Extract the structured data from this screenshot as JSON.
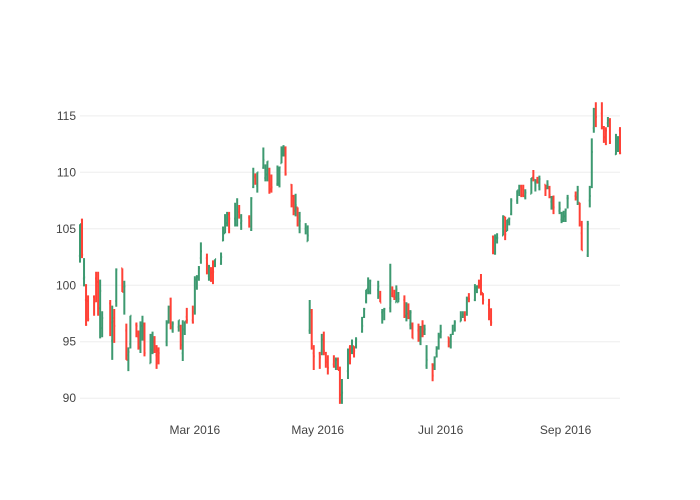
{
  "chart_data": {
    "type": "ohlc",
    "title": "",
    "xlabel": "",
    "ylabel": "",
    "x_range": [
      "2016-01-04",
      "2016-09-28"
    ],
    "ylim": [
      89.4,
      116.4
    ],
    "x_ticks": [
      {
        "date": "2016-03-01",
        "label": "Mar 2016"
      },
      {
        "date": "2016-05-01",
        "label": "May 2016"
      },
      {
        "date": "2016-07-01",
        "label": "Jul 2016"
      },
      {
        "date": "2016-09-01",
        "label": "Sep 2016"
      }
    ],
    "y_ticks": [
      90,
      95,
      100,
      105,
      110,
      115
    ],
    "grid": "horizontal",
    "legend": "none",
    "colors": {
      "increasing": "#3d9970",
      "decreasing": "#ff4136",
      "grid": "#eeeeee",
      "tick_text": "#444444"
    },
    "series": [
      [
        "2016-01-04",
        102.6,
        105.4,
        102.0,
        105.4
      ],
      [
        "2016-01-05",
        105.8,
        105.9,
        102.4,
        102.7
      ],
      [
        "2016-01-06",
        100.6,
        102.4,
        99.9,
        100.7
      ],
      [
        "2016-01-07",
        98.7,
        100.1,
        96.4,
        96.5
      ],
      [
        "2016-01-08",
        98.6,
        99.1,
        96.8,
        97.0
      ],
      [
        "2016-01-11",
        98.97,
        99.1,
        97.3,
        98.5
      ],
      [
        "2016-01-12",
        100.6,
        101.2,
        98.5,
        99.96
      ],
      [
        "2016-01-13",
        100.3,
        101.2,
        97.3,
        97.4
      ],
      [
        "2016-01-14",
        97.96,
        100.5,
        95.3,
        99.5
      ],
      [
        "2016-01-15",
        96.2,
        97.7,
        95.4,
        97.1
      ],
      [
        "2016-01-19",
        98.4,
        98.7,
        95.5,
        96.7
      ],
      [
        "2016-01-20",
        95.1,
        98.2,
        93.4,
        96.8
      ],
      [
        "2016-01-21",
        97.1,
        97.9,
        94.9,
        96.4
      ],
      [
        "2016-01-22",
        98.6,
        101.5,
        98.1,
        101.4
      ],
      [
        "2016-01-25",
        101.5,
        101.5,
        99.4,
        99.4
      ],
      [
        "2016-01-26",
        99.9,
        100.4,
        97.4,
        99.9
      ],
      [
        "2016-01-27",
        96.0,
        96.6,
        93.4,
        93.4
      ],
      [
        "2016-01-28",
        93.8,
        94.5,
        92.4,
        94.1
      ],
      [
        "2016-01-29",
        94.8,
        97.3,
        94.4,
        97.3
      ],
      [
        "2016-02-01",
        96.5,
        96.7,
        95.4,
        96.4
      ],
      [
        "2016-02-02",
        95.4,
        96.0,
        94.3,
        94.5
      ],
      [
        "2016-02-03",
        95.0,
        96.8,
        94.0,
        96.4
      ],
      [
        "2016-02-04",
        95.9,
        97.3,
        95.1,
        96.6
      ],
      [
        "2016-02-05",
        96.5,
        96.7,
        93.7,
        94.0
      ],
      [
        "2016-02-08",
        93.1,
        95.7,
        93.1,
        95.0
      ],
      [
        "2016-02-09",
        94.3,
        95.9,
        93.9,
        94.99
      ],
      [
        "2016-02-10",
        95.0,
        95.5,
        94.0,
        94.3
      ],
      [
        "2016-02-11",
        93.8,
        94.7,
        92.6,
        93.7
      ],
      [
        "2016-02-12",
        94.2,
        94.5,
        93.0,
        93.99
      ],
      [
        "2016-02-16",
        95.0,
        96.9,
        94.6,
        96.6
      ],
      [
        "2016-02-17",
        96.7,
        98.2,
        96.6,
        98.1
      ],
      [
        "2016-02-18",
        98.8,
        98.9,
        96.1,
        96.3
      ],
      [
        "2016-02-19",
        96.0,
        96.8,
        95.8,
        96.6
      ],
      [
        "2016-02-22",
        96.3,
        96.9,
        95.9,
        96.9
      ],
      [
        "2016-02-23",
        96.4,
        96.5,
        94.3,
        94.7
      ],
      [
        "2016-02-24",
        93.98,
        96.9,
        93.3,
        96.1
      ],
      [
        "2016-02-25",
        96.1,
        96.8,
        95.6,
        96.8
      ],
      [
        "2016-02-26",
        97.2,
        98.0,
        96.6,
        96.9
      ],
      [
        "2016-02-29",
        96.9,
        98.2,
        96.6,
        96.7
      ],
      [
        "2016-03-01",
        97.65,
        100.8,
        97.4,
        100.5
      ],
      [
        "2016-03-02",
        100.5,
        100.9,
        99.6,
        100.75
      ],
      [
        "2016-03-03",
        100.6,
        101.7,
        100.4,
        101.5
      ],
      [
        "2016-03-04",
        102.4,
        103.8,
        101.9,
        103.0
      ],
      [
        "2016-03-07",
        102.4,
        102.8,
        100.96,
        101.9
      ],
      [
        "2016-03-08",
        100.8,
        101.8,
        100.4,
        101.6
      ],
      [
        "2016-03-09",
        101.3,
        101.6,
        100.3,
        101.1
      ],
      [
        "2016-03-10",
        101.4,
        102.2,
        100.1,
        101.2
      ],
      [
        "2016-03-11",
        102.2,
        102.3,
        101.6,
        102.3
      ],
      [
        "2016-03-14",
        101.9,
        102.9,
        101.8,
        102.5
      ],
      [
        "2016-03-15",
        103.96,
        105.2,
        103.9,
        104.6
      ],
      [
        "2016-03-16",
        104.6,
        106.3,
        104.6,
        105.97
      ],
      [
        "2016-03-17",
        105.5,
        106.5,
        105.2,
        105.8
      ],
      [
        "2016-03-18",
        106.3,
        106.5,
        104.6,
        105.9
      ],
      [
        "2016-03-21",
        105.9,
        107.3,
        105.2,
        105.9
      ],
      [
        "2016-03-22",
        105.3,
        107.7,
        105.2,
        106.7
      ],
      [
        "2016-03-23",
        106.5,
        107.1,
        105.9,
        106.1
      ],
      [
        "2016-03-24",
        105.5,
        106.3,
        104.9,
        105.7
      ],
      [
        "2016-03-28",
        106.0,
        106.2,
        105.1,
        105.2
      ],
      [
        "2016-03-29",
        104.9,
        107.8,
        104.8,
        107.7
      ],
      [
        "2016-03-30",
        108.7,
        110.4,
        108.6,
        109.6
      ],
      [
        "2016-03-31",
        109.7,
        109.9,
        108.9,
        108.99
      ],
      [
        "2016-04-01",
        108.8,
        110.0,
        108.2,
        109.99
      ],
      [
        "2016-04-04",
        110.4,
        112.2,
        110.3,
        111.1
      ],
      [
        "2016-04-05",
        109.5,
        110.7,
        109.2,
        109.8
      ],
      [
        "2016-04-06",
        110.2,
        110.98,
        109.2,
        110.96
      ],
      [
        "2016-04-07",
        109.95,
        110.4,
        108.1,
        108.5
      ],
      [
        "2016-04-08",
        108.9,
        109.8,
        108.2,
        108.66
      ],
      [
        "2016-04-11",
        108.97,
        110.6,
        108.8,
        109.0
      ],
      [
        "2016-04-12",
        109.3,
        110.5,
        108.66,
        110.44
      ],
      [
        "2016-04-13",
        110.8,
        112.3,
        110.8,
        112.04
      ],
      [
        "2016-04-14",
        111.6,
        112.4,
        111.4,
        112.1
      ],
      [
        "2016-04-15",
        112.1,
        112.3,
        109.7,
        109.85
      ],
      [
        "2016-04-18",
        108.9,
        108.95,
        106.9,
        107.5
      ],
      [
        "2016-04-19",
        107.9,
        108.0,
        106.2,
        106.9
      ],
      [
        "2016-04-20",
        106.6,
        108.1,
        106.1,
        107.1
      ],
      [
        "2016-04-21",
        106.9,
        106.9,
        105.2,
        105.97
      ],
      [
        "2016-04-22",
        105.0,
        106.5,
        104.6,
        105.7
      ],
      [
        "2016-04-25",
        105.0,
        105.5,
        104.5,
        105.08
      ],
      [
        "2016-04-26",
        103.9,
        105.3,
        103.9,
        104.4
      ],
      [
        "2016-04-27",
        96.0,
        98.7,
        95.7,
        97.8
      ],
      [
        "2016-04-28",
        97.6,
        97.9,
        94.3,
        94.8
      ],
      [
        "2016-04-29",
        93.99,
        94.7,
        92.5,
        93.7
      ],
      [
        "2016-05-02",
        93.97,
        94.1,
        92.6,
        93.6
      ],
      [
        "2016-05-03",
        94.2,
        95.7,
        93.8,
        95.2
      ],
      [
        "2016-05-04",
        95.2,
        95.9,
        93.8,
        94.2
      ],
      [
        "2016-05-05",
        94.0,
        94.1,
        92.7,
        93.2
      ],
      [
        "2016-05-06",
        93.4,
        93.8,
        92.1,
        92.7
      ],
      [
        "2016-05-09",
        93.0,
        93.8,
        92.7,
        92.8
      ],
      [
        "2016-05-10",
        93.3,
        93.6,
        92.5,
        93.4
      ],
      [
        "2016-05-11",
        93.5,
        93.6,
        92.5,
        92.5
      ],
      [
        "2016-05-12",
        92.7,
        92.8,
        89.5,
        90.3
      ],
      [
        "2016-05-13",
        90.0,
        91.7,
        89.5,
        90.5
      ],
      [
        "2016-05-16",
        92.4,
        94.4,
        91.7,
        93.9
      ],
      [
        "2016-05-17",
        94.5,
        94.7,
        93.0,
        93.5
      ],
      [
        "2016-05-18",
        94.2,
        95.2,
        93.9,
        94.6
      ],
      [
        "2016-05-19",
        94.6,
        94.6,
        93.6,
        94.2
      ],
      [
        "2016-05-20",
        94.6,
        95.4,
        94.4,
        95.2
      ],
      [
        "2016-05-23",
        95.9,
        97.2,
        95.8,
        96.4
      ],
      [
        "2016-05-24",
        97.2,
        98.0,
        97.1,
        97.9
      ],
      [
        "2016-05-25",
        98.6,
        99.6,
        98.4,
        99.6
      ],
      [
        "2016-05-26",
        99.7,
        100.7,
        99.2,
        100.4
      ],
      [
        "2016-05-27",
        99.4,
        100.5,
        99.2,
        100.4
      ],
      [
        "2016-05-31",
        99.6,
        100.4,
        98.8,
        99.9
      ],
      [
        "2016-06-01",
        99.0,
        99.5,
        98.5,
        98.46
      ],
      [
        "2016-06-02",
        97.6,
        97.9,
        96.6,
        97.7
      ],
      [
        "2016-06-03",
        97.8,
        98.0,
        96.9,
        97.9
      ],
      [
        "2016-06-06",
        97.99,
        101.9,
        97.6,
        98.6
      ],
      [
        "2016-06-07",
        99.25,
        99.9,
        98.96,
        99.0
      ],
      [
        "2016-06-08",
        99.0,
        99.6,
        98.7,
        98.9
      ],
      [
        "2016-06-09",
        98.5,
        99.99,
        98.5,
        99.65
      ],
      [
        "2016-06-10",
        98.5,
        99.4,
        98.5,
        98.8
      ],
      [
        "2016-06-13",
        98.7,
        99.1,
        97.1,
        97.3
      ],
      [
        "2016-06-14",
        97.3,
        98.5,
        96.8,
        97.5
      ],
      [
        "2016-06-15",
        97.8,
        98.4,
        97.0,
        97.1
      ],
      [
        "2016-06-16",
        96.5,
        97.8,
        96.1,
        97.6
      ],
      [
        "2016-06-17",
        96.6,
        96.7,
        95.3,
        95.3
      ],
      [
        "2016-06-20",
        96.0,
        96.6,
        95.0,
        95.1
      ],
      [
        "2016-06-21",
        94.9,
        96.4,
        94.7,
        95.9
      ],
      [
        "2016-06-22",
        96.3,
        96.9,
        95.4,
        95.55
      ],
      [
        "2016-06-23",
        95.9,
        96.5,
        95.6,
        96.1
      ],
      [
        "2016-06-24",
        92.9,
        94.7,
        92.6,
        93.4
      ],
      [
        "2016-06-27",
        93.0,
        93.1,
        91.5,
        92.0
      ],
      [
        "2016-06-28",
        92.9,
        93.7,
        92.5,
        93.6
      ],
      [
        "2016-06-29",
        93.97,
        94.6,
        93.6,
        94.4
      ],
      [
        "2016-06-30",
        94.4,
        95.8,
        94.3,
        95.6
      ],
      [
        "2016-07-01",
        95.5,
        96.5,
        95.3,
        95.9
      ],
      [
        "2016-07-05",
        95.4,
        95.4,
        94.5,
        94.99
      ],
      [
        "2016-07-06",
        94.6,
        95.7,
        94.4,
        95.5
      ],
      [
        "2016-07-07",
        95.7,
        96.5,
        95.6,
        95.9
      ],
      [
        "2016-07-08",
        96.5,
        96.9,
        95.9,
        96.7
      ],
      [
        "2016-07-11",
        96.8,
        97.7,
        96.8,
        96.98
      ],
      [
        "2016-07-12",
        97.2,
        97.7,
        97.1,
        97.4
      ],
      [
        "2016-07-13",
        97.4,
        97.7,
        96.8,
        96.9
      ],
      [
        "2016-07-14",
        97.4,
        98.99,
        97.3,
        98.8
      ],
      [
        "2016-07-15",
        98.9,
        99.3,
        98.5,
        98.8
      ],
      [
        "2016-07-18",
        98.7,
        100.1,
        98.6,
        99.8
      ],
      [
        "2016-07-19",
        99.6,
        100.0,
        99.3,
        99.9
      ],
      [
        "2016-07-20",
        100.0,
        100.5,
        99.7,
        99.96
      ],
      [
        "2016-07-21",
        99.8,
        101.0,
        99.1,
        99.4
      ],
      [
        "2016-07-22",
        99.3,
        99.3,
        98.3,
        98.7
      ],
      [
        "2016-07-25",
        98.25,
        98.8,
        96.9,
        97.3
      ],
      [
        "2016-07-26",
        96.8,
        97.97,
        96.4,
        96.7
      ],
      [
        "2016-07-27",
        104.3,
        104.4,
        102.75,
        102.95
      ],
      [
        "2016-07-28",
        102.8,
        104.5,
        102.7,
        104.3
      ],
      [
        "2016-07-29",
        104.2,
        104.6,
        103.7,
        104.2
      ],
      [
        "2016-08-01",
        104.4,
        106.2,
        104.4,
        106.05
      ],
      [
        "2016-08-02",
        106.05,
        106.07,
        104.0,
        104.5
      ],
      [
        "2016-08-03",
        104.8,
        105.8,
        104.8,
        105.8
      ],
      [
        "2016-08-04",
        105.6,
        106.0,
        105.3,
        105.9
      ],
      [
        "2016-08-05",
        106.3,
        107.7,
        106.2,
        107.5
      ],
      [
        "2016-08-08",
        107.5,
        108.4,
        107.2,
        108.4
      ],
      [
        "2016-08-09",
        108.2,
        108.9,
        107.9,
        108.8
      ],
      [
        "2016-08-10",
        108.7,
        108.9,
        107.8,
        108.0
      ],
      [
        "2016-08-11",
        108.5,
        108.9,
        107.8,
        107.9
      ],
      [
        "2016-08-12",
        107.8,
        108.5,
        107.6,
        108.2
      ],
      [
        "2016-08-15",
        108.1,
        109.5,
        108.1,
        109.5
      ],
      [
        "2016-08-16",
        109.6,
        110.2,
        109.2,
        109.4
      ],
      [
        "2016-08-17",
        109.1,
        109.4,
        108.3,
        109.2
      ],
      [
        "2016-08-18",
        109.2,
        109.6,
        109.0,
        109.1
      ],
      [
        "2016-08-19",
        108.8,
        109.7,
        108.4,
        109.4
      ],
      [
        "2016-08-22",
        108.9,
        108.9,
        107.9,
        108.5
      ],
      [
        "2016-08-23",
        108.6,
        109.3,
        108.5,
        108.9
      ],
      [
        "2016-08-24",
        108.6,
        108.8,
        107.7,
        108.0
      ],
      [
        "2016-08-25",
        107.4,
        107.9,
        106.7,
        107.6
      ],
      [
        "2016-08-26",
        107.4,
        107.95,
        106.3,
        106.9
      ],
      [
        "2016-08-29",
        106.6,
        107.4,
        106.3,
        106.8
      ],
      [
        "2016-08-30",
        105.8,
        106.5,
        105.5,
        106.0
      ],
      [
        "2016-08-31",
        105.7,
        106.6,
        105.6,
        106.1
      ],
      [
        "2016-09-01",
        106.1,
        106.8,
        105.6,
        106.7
      ],
      [
        "2016-09-02",
        107.7,
        108.0,
        106.8,
        107.7
      ],
      [
        "2016-09-06",
        107.9,
        108.3,
        107.5,
        107.7
      ],
      [
        "2016-09-07",
        107.8,
        108.8,
        107.1,
        108.4
      ],
      [
        "2016-09-08",
        107.3,
        107.3,
        105.2,
        105.4
      ],
      [
        "2016-09-09",
        104.6,
        105.7,
        103.1,
        103.1
      ],
      [
        "2016-09-12",
        102.65,
        105.7,
        102.5,
        105.4
      ],
      [
        "2016-09-13",
        107.5,
        108.8,
        106.9,
        107.9
      ],
      [
        "2016-09-14",
        108.7,
        113.0,
        108.6,
        111.8
      ],
      [
        "2016-09-15",
        113.9,
        115.7,
        113.5,
        115.6
      ],
      [
        "2016-09-16",
        115.1,
        116.2,
        114.0,
        114.9
      ],
      [
        "2016-09-19",
        115.2,
        116.2,
        113.8,
        114.0
      ],
      [
        "2016-09-20",
        113.9,
        114.1,
        112.6,
        113.1
      ],
      [
        "2016-09-21",
        113.8,
        113.99,
        112.4,
        113.7
      ],
      [
        "2016-09-22",
        114.35,
        114.9,
        114.0,
        114.6
      ],
      [
        "2016-09-23",
        114.4,
        114.8,
        112.5,
        112.7
      ],
      [
        "2016-09-26",
        111.6,
        113.4,
        111.55,
        112.9
      ],
      [
        "2016-09-27",
        113.0,
        113.2,
        111.8,
        113.1
      ],
      [
        "2016-09-28",
        113.7,
        114.0,
        111.6,
        111.7
      ]
    ]
  }
}
